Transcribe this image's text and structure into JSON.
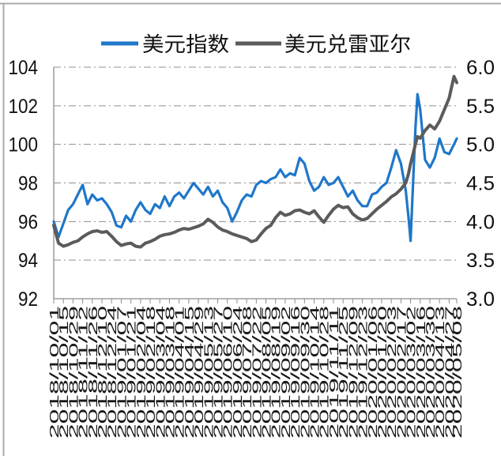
{
  "chart_data": {
    "type": "line",
    "legend_position": "top",
    "grid": true,
    "xlim": [
      "2018-10-01",
      "2020-05-08"
    ],
    "ylim_left": [
      92,
      104
    ],
    "ylim_right": [
      3.0,
      6.0
    ],
    "y_left_tick_labels": [
      "92",
      "94",
      "96",
      "98",
      "100",
      "102",
      "104"
    ],
    "y_right_tick_labels": [
      "3.0",
      "3.5",
      "4.0",
      "4.5",
      "5.0",
      "5.5",
      "6.0"
    ],
    "x_tick_labels": [
      "2018/10/01",
      "2018/10/15",
      "2018/10/29",
      "2018/11/12",
      "2018/11/26",
      "2018/12/10",
      "2018/12/24",
      "2019/01/07",
      "2019/01/21",
      "2019/02/04",
      "2019/02/18",
      "2019/03/04",
      "2019/03/18",
      "2019/04/01",
      "2019/04/15",
      "2019/04/29",
      "2019/05/13",
      "2019/05/27",
      "2019/06/10",
      "2019/06/24",
      "2019/07/08",
      "2019/07/22",
      "2019/08/05",
      "2019/08/19",
      "2019/09/02",
      "2019/09/16",
      "2019/09/30",
      "2019/10/14",
      "2019/10/28",
      "2019/11/11",
      "2019/11/25",
      "2019/12/09",
      "2019/12/23",
      "2020/01/06",
      "2020/01/20",
      "2020/02/03",
      "2020/02/17",
      "2020/03/02",
      "2020/03/16",
      "2020/03/30",
      "2020/04/13",
      "2020/04/27",
      "2020/05/08"
    ],
    "x": [
      "2018-10-01",
      "2018-10-08",
      "2018-10-15",
      "2018-10-22",
      "2018-10-29",
      "2018-11-05",
      "2018-11-12",
      "2018-11-19",
      "2018-11-26",
      "2018-12-03",
      "2018-12-10",
      "2018-12-17",
      "2018-12-24",
      "2018-12-31",
      "2019-01-07",
      "2019-01-14",
      "2019-01-21",
      "2019-01-28",
      "2019-02-04",
      "2019-02-11",
      "2019-02-18",
      "2019-02-25",
      "2019-03-04",
      "2019-03-11",
      "2019-03-18",
      "2019-03-25",
      "2019-04-01",
      "2019-04-08",
      "2019-04-15",
      "2019-04-22",
      "2019-04-29",
      "2019-05-06",
      "2019-05-13",
      "2019-05-20",
      "2019-05-27",
      "2019-06-03",
      "2019-06-10",
      "2019-06-17",
      "2019-06-24",
      "2019-07-01",
      "2019-07-08",
      "2019-07-15",
      "2019-07-22",
      "2019-07-29",
      "2019-08-05",
      "2019-08-12",
      "2019-08-19",
      "2019-08-26",
      "2019-09-02",
      "2019-09-09",
      "2019-09-16",
      "2019-09-23",
      "2019-09-30",
      "2019-10-07",
      "2019-10-14",
      "2019-10-21",
      "2019-10-28",
      "2019-11-04",
      "2019-11-11",
      "2019-11-18",
      "2019-11-25",
      "2019-12-02",
      "2019-12-09",
      "2019-12-16",
      "2019-12-23",
      "2019-12-30",
      "2020-01-06",
      "2020-01-13",
      "2020-01-20",
      "2020-01-27",
      "2020-02-03",
      "2020-02-10",
      "2020-02-17",
      "2020-02-24",
      "2020-02-28",
      "2020-03-02",
      "2020-03-09",
      "2020-03-12",
      "2020-03-16",
      "2020-03-23",
      "2020-03-30",
      "2020-04-06",
      "2020-04-13",
      "2020-04-20",
      "2020-04-27",
      "2020-05-04",
      "2020-05-08"
    ],
    "series": [
      {
        "name": "美元指数",
        "axis": "left",
        "color": "#1f77c9",
        "values": [
          96.0,
          95.2,
          95.9,
          96.6,
          96.9,
          97.4,
          97.9,
          96.9,
          97.4,
          97.1,
          97.2,
          96.9,
          96.5,
          95.8,
          95.7,
          96.3,
          96.0,
          96.6,
          97.0,
          96.6,
          96.4,
          96.9,
          96.7,
          97.3,
          96.8,
          97.3,
          97.5,
          97.2,
          97.6,
          98.0,
          97.7,
          97.4,
          97.8,
          97.3,
          97.6,
          97.0,
          96.7,
          96.0,
          96.5,
          97.1,
          97.4,
          97.3,
          97.9,
          98.1,
          98.0,
          98.2,
          98.3,
          98.7,
          98.3,
          98.5,
          98.4,
          99.3,
          99.0,
          98.1,
          97.6,
          97.8,
          98.3,
          97.9,
          98.0,
          98.3,
          97.8,
          97.3,
          97.6,
          97.1,
          96.8,
          96.8,
          97.4,
          97.5,
          97.8,
          98.0,
          98.8,
          99.7,
          99.0,
          97.6,
          96.2,
          95.0,
          100.8,
          102.6,
          101.8,
          99.2,
          98.8,
          99.3,
          100.3,
          99.6,
          99.5,
          100.0,
          100.3
        ]
      },
      {
        "name": "美元兑雷亚尔",
        "axis": "right",
        "color": "#5b5b5b",
        "values": [
          3.95,
          3.72,
          3.68,
          3.7,
          3.73,
          3.75,
          3.8,
          3.84,
          3.87,
          3.88,
          3.86,
          3.87,
          3.81,
          3.74,
          3.69,
          3.71,
          3.72,
          3.68,
          3.67,
          3.72,
          3.74,
          3.77,
          3.81,
          3.83,
          3.84,
          3.86,
          3.89,
          3.91,
          3.9,
          3.92,
          3.94,
          3.97,
          4.03,
          3.99,
          3.93,
          3.89,
          3.87,
          3.84,
          3.82,
          3.8,
          3.78,
          3.74,
          3.76,
          3.84,
          3.91,
          3.95,
          4.05,
          4.12,
          4.08,
          4.1,
          4.14,
          4.15,
          4.12,
          4.1,
          4.14,
          4.06,
          3.99,
          4.08,
          4.16,
          4.21,
          4.18,
          4.19,
          4.1,
          4.05,
          4.02,
          4.04,
          4.1,
          4.16,
          4.21,
          4.26,
          4.32,
          4.36,
          4.42,
          4.5,
          4.62,
          4.75,
          5.0,
          5.1,
          5.08,
          5.18,
          5.25,
          5.2,
          5.3,
          5.45,
          5.6,
          5.88,
          5.8
        ]
      }
    ]
  }
}
